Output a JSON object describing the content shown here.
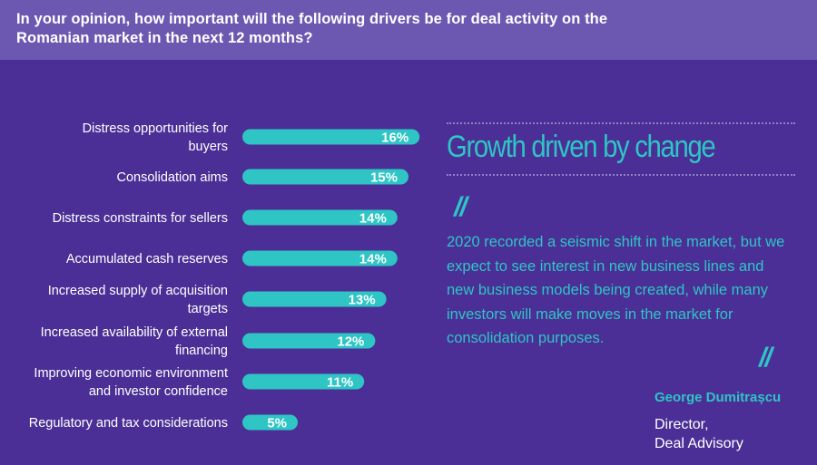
{
  "header": {
    "title_line1": "In your opinion, how important will the following drivers be for deal activity on the",
    "title_line2": "Romanian market in the next 12 months?"
  },
  "chart_data": {
    "type": "bar",
    "orientation": "horizontal",
    "categories": [
      [
        "Distress opportunities for",
        "buyers"
      ],
      [
        "Consolidation aims"
      ],
      [
        "Distress constraints for sellers"
      ],
      [
        "Accumulated cash reserves"
      ],
      [
        "Increased supply of acquisition",
        "targets"
      ],
      [
        "Increased availability of external",
        "financing"
      ],
      [
        "Improving economic environment",
        "and investor confidence"
      ],
      [
        "Regulatory and tax considerations"
      ]
    ],
    "values": [
      16,
      15,
      14,
      14,
      13,
      12,
      11,
      5
    ],
    "value_labels": [
      "16%",
      "15%",
      "14%",
      "14%",
      "13%",
      "12%",
      "11%",
      "5%"
    ],
    "unit": "%",
    "bar_color": "#2ec5c4",
    "grid": false
  },
  "panel": {
    "title": "Growth driven by change",
    "open_quote": "//",
    "close_quote": "//",
    "quote_lines": [
      "2020 recorded a seismic shift in the market, but we",
      "expect to see interest in new business lines and",
      "new business models being created, while many",
      "investors will make moves in the market for",
      "consolidation purposes."
    ],
    "author_name": "George Dumitrașcu",
    "author_role_line1": "Director,",
    "author_role_line2": "Deal Advisory"
  },
  "colors": {
    "background": "#4b2f96",
    "header_band": "#6c58b0",
    "accent": "#2ec5c4",
    "text": "#ffffff"
  }
}
